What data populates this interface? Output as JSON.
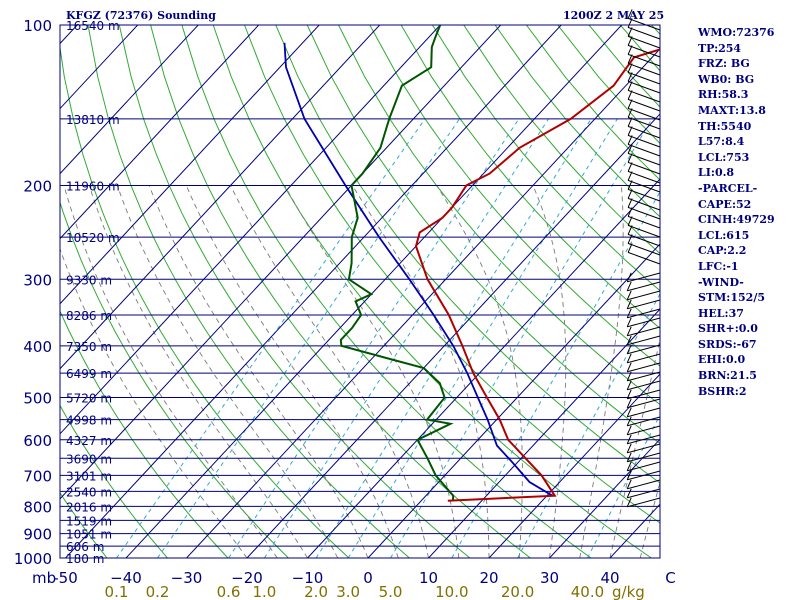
{
  "header": {
    "title": "KFGZ (72376) Sounding",
    "valid_time": "1200Z  2 MAY 25"
  },
  "indices": [
    "WMO:72376",
    "TP:254",
    "FRZ: BG",
    "WB0: BG",
    "RH:58.3",
    "MAXT:13.8",
    "TH:5540",
    "L57:8.4",
    "LCL:753",
    "LI:0.8",
    "-PARCEL-",
    "CAPE:52",
    "CINH:49729",
    "LCL:615",
    "CAP:2.2",
    "LFC:-1",
    "-WIND-",
    "STM:152/5",
    "HEL:37",
    "SHR+:0.0",
    "SRDS:-67",
    "EHI:0.0",
    "BRN:21.5",
    "BSHR:2"
  ],
  "chart_data": {
    "type": "skew-t log-p",
    "pressure_axis": {
      "unit": "mb",
      "levels": [
        1000,
        900,
        800,
        700,
        600,
        500,
        400,
        300,
        200,
        100
      ]
    },
    "temperature_axis": {
      "unit": "C",
      "range": [
        -50,
        50
      ],
      "ticks": [
        -50,
        -40,
        -30,
        -20,
        -10,
        0,
        10,
        20,
        30,
        40,
        50
      ],
      "tick_labels": [
        "-50",
        "−40",
        "−30",
        "−20",
        "−10",
        "0",
        "10",
        "20",
        "30",
        "40",
        "C"
      ]
    },
    "mixing_ratio_axis": {
      "unit": "g/kg",
      "values": [
        0.1,
        0.2,
        0.6,
        1.0,
        2.0,
        3.0,
        5.0,
        10.0,
        20.0,
        40.0
      ],
      "labels": [
        "0.1",
        "0.2",
        "0.6",
        "1.0",
        "2.0",
        "3.0",
        "5.0",
        "10.0",
        "20.0",
        "40.0"
      ]
    },
    "height_labels": [
      {
        "p": 100,
        "label": "16540 m"
      },
      {
        "p": 150,
        "label": "13810 m"
      },
      {
        "p": 200,
        "label": "11960 m"
      },
      {
        "p": 250,
        "label": "10520 m"
      },
      {
        "p": 300,
        "label": "9330 m"
      },
      {
        "p": 350,
        "label": "8286 m"
      },
      {
        "p": 400,
        "label": "7350 m"
      },
      {
        "p": 450,
        "label": "6499 m"
      },
      {
        "p": 500,
        "label": "5720 m"
      },
      {
        "p": 550,
        "label": "4998 m"
      },
      {
        "p": 600,
        "label": "4327 m"
      },
      {
        "p": 650,
        "label": "3690 m"
      },
      {
        "p": 700,
        "label": "3101 m"
      },
      {
        "p": 750,
        "label": "2540 m"
      },
      {
        "p": 800,
        "label": "2016 m"
      },
      {
        "p": 850,
        "label": "1519 m"
      },
      {
        "p": 900,
        "label": "1051 m"
      },
      {
        "p": 950,
        "label": "606 m"
      },
      {
        "p": 1000,
        "label": "180 m"
      }
    ],
    "temperature": [
      {
        "p": 781,
        "t": 4.4
      },
      {
        "p": 764,
        "t": 21.3
      },
      {
        "p": 700,
        "t": 16.0
      },
      {
        "p": 600,
        "t": 5.0
      },
      {
        "p": 550,
        "t": 0.5
      },
      {
        "p": 500,
        "t": -5.0
      },
      {
        "p": 450,
        "t": -11.0
      },
      {
        "p": 400,
        "t": -17.0
      },
      {
        "p": 350,
        "t": -24.0
      },
      {
        "p": 300,
        "t": -33.0
      },
      {
        "p": 260,
        "t": -40.0
      },
      {
        "p": 245,
        "t": -41.5
      },
      {
        "p": 230,
        "t": -40.0
      },
      {
        "p": 220,
        "t": -40.0
      },
      {
        "p": 200,
        "t": -41.0
      },
      {
        "p": 190,
        "t": -39.0
      },
      {
        "p": 170,
        "t": -38.0
      },
      {
        "p": 150,
        "t": -34.0
      },
      {
        "p": 130,
        "t": -32.0
      },
      {
        "p": 115,
        "t": -33.0
      },
      {
        "p": 110,
        "t": -29.0
      },
      {
        "p": 103,
        "t": -29.0
      },
      {
        "p": 100,
        "t": -27.5
      }
    ],
    "dewpoint": [
      {
        "p": 780,
        "t": 5.2
      },
      {
        "p": 764,
        "t": 4.5
      },
      {
        "p": 700,
        "t": -1.5
      },
      {
        "p": 650,
        "t": -5.5
      },
      {
        "p": 600,
        "t": -10.0
      },
      {
        "p": 560,
        "t": -7.0
      },
      {
        "p": 550,
        "t": -11.5
      },
      {
        "p": 500,
        "t": -12.0
      },
      {
        "p": 470,
        "t": -15.0
      },
      {
        "p": 440,
        "t": -20.0
      },
      {
        "p": 400,
        "t": -37.0
      },
      {
        "p": 390,
        "t": -38.0
      },
      {
        "p": 370,
        "t": -38.0
      },
      {
        "p": 350,
        "t": -38.5
      },
      {
        "p": 330,
        "t": -41.5
      },
      {
        "p": 320,
        "t": -40.0
      },
      {
        "p": 300,
        "t": -46.0
      },
      {
        "p": 280,
        "t": -48.0
      },
      {
        "p": 250,
        "t": -52.0
      },
      {
        "p": 230,
        "t": -54.0
      },
      {
        "p": 200,
        "t": -60.0
      },
      {
        "p": 190,
        "t": -60.0
      },
      {
        "p": 170,
        "t": -61.0
      },
      {
        "p": 150,
        "t": -64.0
      },
      {
        "p": 130,
        "t": -67.0
      },
      {
        "p": 120,
        "t": -65.0
      },
      {
        "p": 110,
        "t": -68.0
      },
      {
        "p": 105,
        "t": -69.0
      },
      {
        "p": 100,
        "t": -70.0
      }
    ],
    "parcel": [
      {
        "p": 764,
        "t": 20.9
      },
      {
        "p": 720,
        "t": 15.0
      },
      {
        "p": 660,
        "t": 9.0
      },
      {
        "p": 615,
        "t": 4.0
      },
      {
        "p": 550,
        "t": -1.5
      },
      {
        "p": 500,
        "t": -6.5
      },
      {
        "p": 450,
        "t": -12.0
      },
      {
        "p": 400,
        "t": -18.5
      },
      {
        "p": 350,
        "t": -26.5
      },
      {
        "p": 300,
        "t": -36.0
      },
      {
        "p": 250,
        "t": -47.5
      },
      {
        "p": 200,
        "t": -61.0
      },
      {
        "p": 150,
        "t": -78.0
      },
      {
        "p": 120,
        "t": -89.0
      },
      {
        "p": 108,
        "t": -93.0
      }
    ],
    "colors": {
      "temperature": "#b00000",
      "dewpoint": "#005500",
      "parcel": "#0000b0",
      "isobar": "#00007f",
      "isotherm": "#00007f",
      "dry_adiabat": "#33aa33",
      "moist_adiabat": "#7a7a7a",
      "mixing_ratio": "#33aacc",
      "axis_label": "#00007f",
      "mixing_ratio_label": "#807000",
      "text": "#00007f"
    }
  }
}
